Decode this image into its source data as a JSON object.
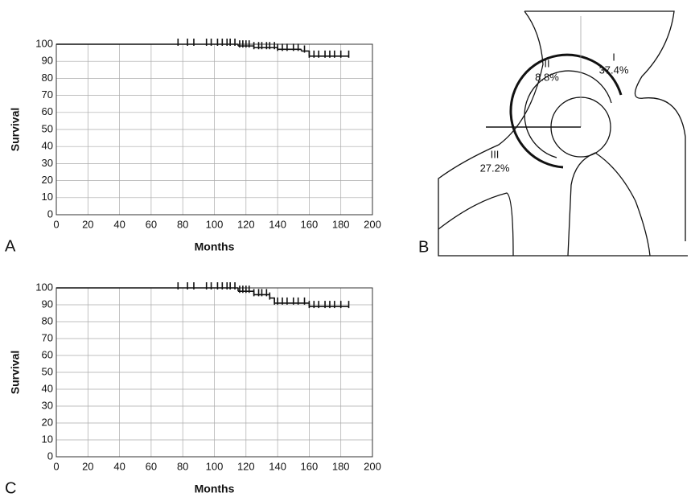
{
  "chart_data": [
    {
      "type": "survival",
      "panel_label": "A",
      "x_label": "Months",
      "y_label": "Survival",
      "xlim": [
        0,
        200
      ],
      "xticks": [
        0,
        20,
        40,
        60,
        80,
        100,
        120,
        140,
        160,
        180,
        200
      ],
      "ylim": [
        0,
        100
      ],
      "yticks": [
        0,
        10,
        20,
        30,
        40,
        50,
        60,
        70,
        80,
        90,
        100
      ],
      "grid": true,
      "color": "#111111",
      "step_x": [
        0,
        115,
        125,
        140,
        155,
        160,
        185
      ],
      "step_y": [
        100,
        99,
        98,
        97,
        96,
        93,
        93
      ],
      "censored_x": [
        77,
        83,
        87,
        95,
        98,
        102,
        105,
        108,
        110,
        113,
        116,
        118,
        120,
        122,
        125,
        128,
        130,
        133,
        135,
        138,
        140,
        143,
        146,
        150,
        153,
        157,
        160,
        163,
        166,
        170,
        173,
        176,
        180,
        185
      ],
      "censored_y": [
        100,
        100,
        100,
        100,
        100,
        100,
        100,
        100,
        100,
        100,
        99,
        99,
        99,
        99,
        98,
        98,
        98,
        98,
        98,
        98,
        97,
        97,
        97,
        97,
        97,
        96,
        93,
        93,
        93,
        93,
        93,
        93,
        93,
        93
      ]
    },
    {
      "type": "survival",
      "panel_label": "C",
      "x_label": "Months",
      "y_label": "Survival",
      "xlim": [
        0,
        200
      ],
      "xticks": [
        0,
        20,
        40,
        60,
        80,
        100,
        120,
        140,
        160,
        180,
        200
      ],
      "ylim": [
        0,
        100
      ],
      "yticks": [
        0,
        10,
        20,
        30,
        40,
        50,
        60,
        70,
        80,
        90,
        100
      ],
      "grid": true,
      "color": "#111111",
      "step_x": [
        0,
        115,
        125,
        135,
        138,
        160,
        185
      ],
      "step_y": [
        100,
        98,
        96,
        94,
        91,
        89,
        89
      ],
      "censored_x": [
        77,
        83,
        87,
        95,
        98,
        102,
        105,
        108,
        110,
        113,
        116,
        118,
        120,
        122,
        125,
        128,
        130,
        133,
        135,
        138,
        140,
        143,
        146,
        150,
        153,
        157,
        160,
        163,
        166,
        170,
        173,
        176,
        180,
        185
      ],
      "censored_y": [
        100,
        100,
        100,
        100,
        100,
        100,
        100,
        100,
        100,
        100,
        98,
        98,
        98,
        98,
        96,
        96,
        96,
        96,
        94,
        91,
        91,
        91,
        91,
        91,
        91,
        91,
        89,
        89,
        89,
        89,
        89,
        89,
        89,
        89
      ]
    }
  ],
  "diagram": {
    "panel_label": "B",
    "regions": [
      {
        "label": "I",
        "percent": "37.4%"
      },
      {
        "label": "II",
        "percent": "8.8%"
      },
      {
        "label": "III",
        "percent": "27.2%"
      }
    ]
  }
}
